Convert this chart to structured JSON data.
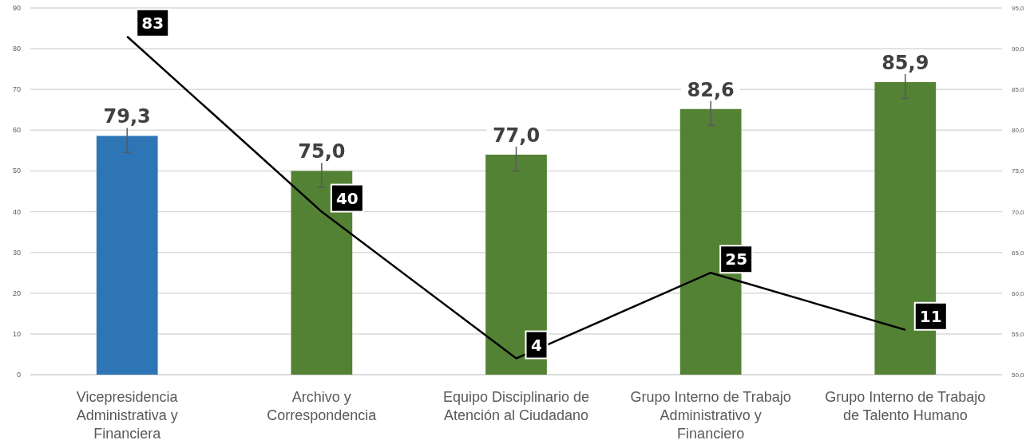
{
  "chart_data": {
    "type": "bar",
    "categories": [
      "Vicepresidencia Administrativa y Financiera",
      "Archivo y Correspondencia",
      "Equipo Disciplinario de Atención al Ciudadano",
      "Grupo Interno de Trabajo Administrativo y Financiero",
      "Grupo Interno de Trabajo de Talento Humano"
    ],
    "ylim": [
      0,
      90
    ],
    "yticks": [
      0,
      10,
      20,
      30,
      40,
      50,
      60,
      70,
      80,
      90
    ],
    "y2lim": [
      50,
      95
    ],
    "y2ticks": [
      {
        "value": 50,
        "label": "50,0"
      },
      {
        "value": 55,
        "label": "55,0"
      },
      {
        "value": 60,
        "label": "60,0"
      },
      {
        "value": 65,
        "label": "65,0"
      },
      {
        "value": 70,
        "label": "70,0"
      },
      {
        "value": 75,
        "label": "75,0"
      },
      {
        "value": 80,
        "label": "80,0"
      },
      {
        "value": 85,
        "label": "85,0"
      },
      {
        "value": 90,
        "label": "90,0"
      },
      {
        "value": 95,
        "label": "95,0"
      }
    ],
    "grid": "y",
    "series": [
      {
        "axis": "y2",
        "colors": [
          "#2e75b6",
          "#548235",
          "#548235",
          "#548235",
          "#548235"
        ],
        "values": [
          79.3,
          75.0,
          77.0,
          82.6,
          85.9
        ],
        "errors": [
          2,
          2,
          2,
          2,
          2
        ],
        "value_labels": [
          "79,3",
          "75,0",
          "77,0",
          "82,6",
          "85,9"
        ]
      },
      {
        "type": "line",
        "color": "#000000",
        "values": [
          83,
          40,
          4,
          25,
          11
        ],
        "data_labels": true,
        "marker": "none"
      }
    ]
  }
}
